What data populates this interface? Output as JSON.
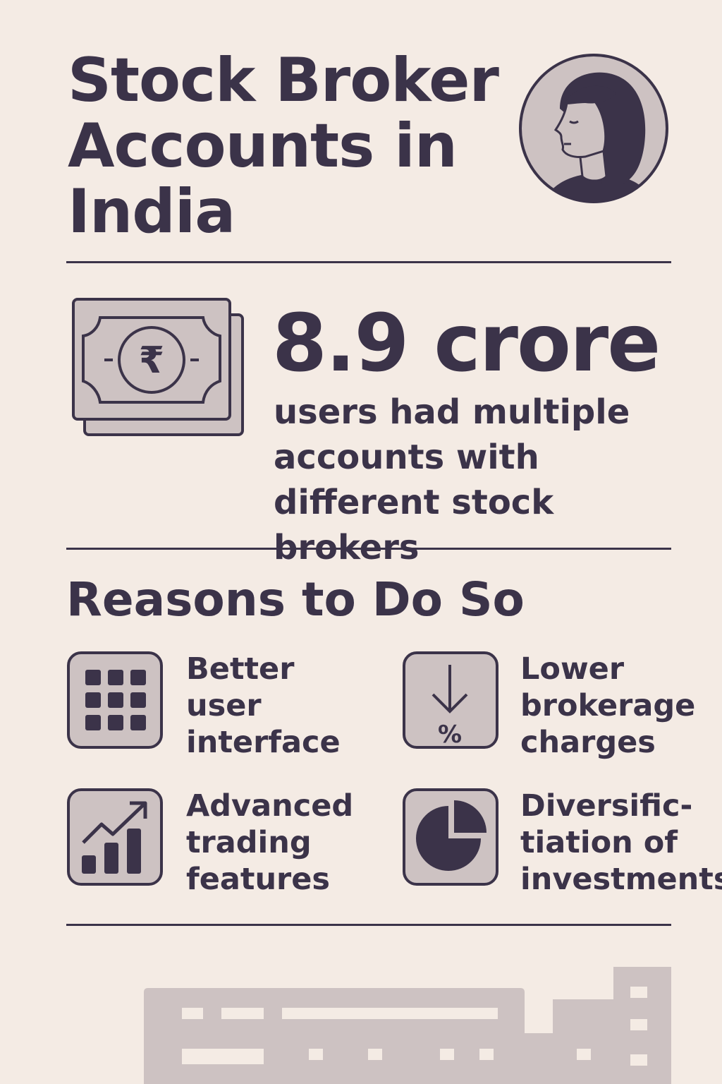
{
  "header": {
    "title": "Stock Broker Accounts in India",
    "avatar_icon": "woman-profile-avatar-icon"
  },
  "stat": {
    "icon": "rupee-banknote-icon",
    "value": "8.9 crore",
    "description": "users had multiple accounts with different stock brokers"
  },
  "reasons": {
    "title": "Reasons to Do So",
    "items": [
      {
        "icon": "grid-apps-icon",
        "label": "Better\nuser\ninterface"
      },
      {
        "icon": "down-arrow-percent-icon",
        "label": "Lower\nbrokerage\ncharges"
      },
      {
        "icon": "trending-bar-chart-icon",
        "label": "Advanced\ntrading\nfeatures"
      },
      {
        "icon": "pie-chart-icon",
        "label": "Diversific-\ntiation of\ninvestments"
      }
    ]
  },
  "footer": {
    "illustration": "city-skyline-illustration"
  },
  "colors": {
    "background": "#f4ebe4",
    "ink": "#3b3349",
    "icon_fill": "#cdc2c2",
    "illustration": "#cdc2c2"
  }
}
